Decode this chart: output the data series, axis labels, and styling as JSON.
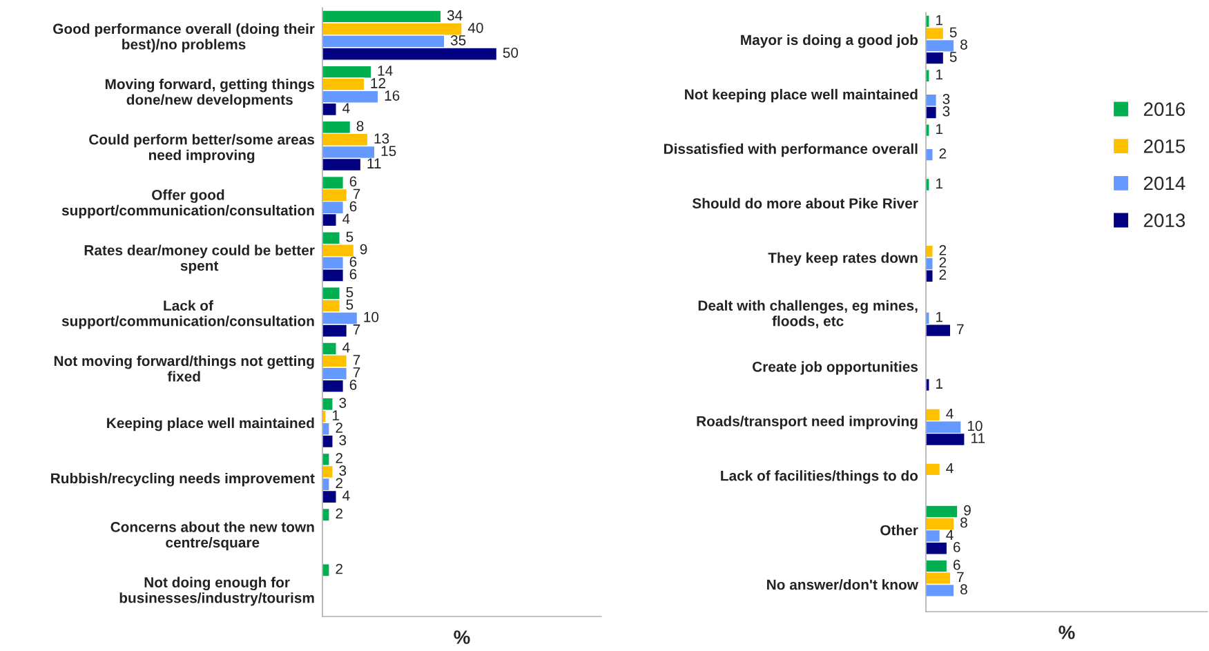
{
  "chart_data": [
    {
      "type": "bar",
      "orientation": "horizontal",
      "xlabel": "%",
      "tick_labels": "y",
      "grid": false,
      "legend": "right",
      "data_labels": true,
      "categories": [
        "Good performance overall (doing their\nbest)/no problems",
        "Moving forward, getting things\ndone/new developments",
        "Could perform better/some areas\nneed improving",
        "Offer good\nsupport/communication/consultation",
        "Rates dear/money could be better\nspent",
        "Lack of\nsupport/communication/consultation",
        "Not moving forward/things not getting\nfixed",
        "Keeping place well maintained",
        "Rubbish/recycling needs improvement",
        "Concerns about the new town\ncentre/square",
        "Not doing enough for\nbusinesses/industry/tourism"
      ],
      "series": [
        {
          "name": "2016",
          "color": "#00b050",
          "values": [
            34,
            14,
            8,
            6,
            5,
            5,
            4,
            3,
            2,
            2,
            2
          ]
        },
        {
          "name": "2015",
          "color": "#ffc000",
          "values": [
            40,
            12,
            13,
            7,
            9,
            5,
            7,
            1,
            3,
            null,
            null
          ]
        },
        {
          "name": "2014",
          "color": "#6699ff",
          "values": [
            35,
            16,
            15,
            6,
            6,
            10,
            7,
            2,
            2,
            null,
            null
          ]
        },
        {
          "name": "2013",
          "color": "#000080",
          "values": [
            50,
            4,
            11,
            4,
            6,
            7,
            6,
            3,
            4,
            null,
            null
          ]
        }
      ]
    },
    {
      "type": "bar",
      "orientation": "horizontal",
      "xlabel": "%",
      "tick_labels": "y",
      "grid": false,
      "data_labels": true,
      "categories": [
        "Mayor is doing a good job",
        "Not keeping place well maintained",
        "Dissatisfied with performance overall",
        "Should do more about Pike River",
        "They keep rates down",
        "Dealt with challenges, eg mines,\nfloods, etc",
        "Create job opportunities",
        "Roads/transport need improving",
        "Lack of facilities/things to do",
        "Other",
        "No answer/don't know"
      ],
      "series": [
        {
          "name": "2016",
          "color": "#00b050",
          "values": [
            1,
            1,
            1,
            1,
            null,
            null,
            null,
            null,
            null,
            9,
            6
          ]
        },
        {
          "name": "2015",
          "color": "#ffc000",
          "values": [
            5,
            null,
            null,
            null,
            2,
            null,
            null,
            4,
            4,
            8,
            7
          ]
        },
        {
          "name": "2014",
          "color": "#6699ff",
          "values": [
            8,
            3,
            2,
            null,
            2,
            1,
            null,
            10,
            null,
            4,
            8
          ]
        },
        {
          "name": "2013",
          "color": "#000080",
          "values": [
            5,
            3,
            null,
            null,
            2,
            7,
            1,
            11,
            null,
            6,
            null
          ]
        }
      ]
    }
  ]
}
